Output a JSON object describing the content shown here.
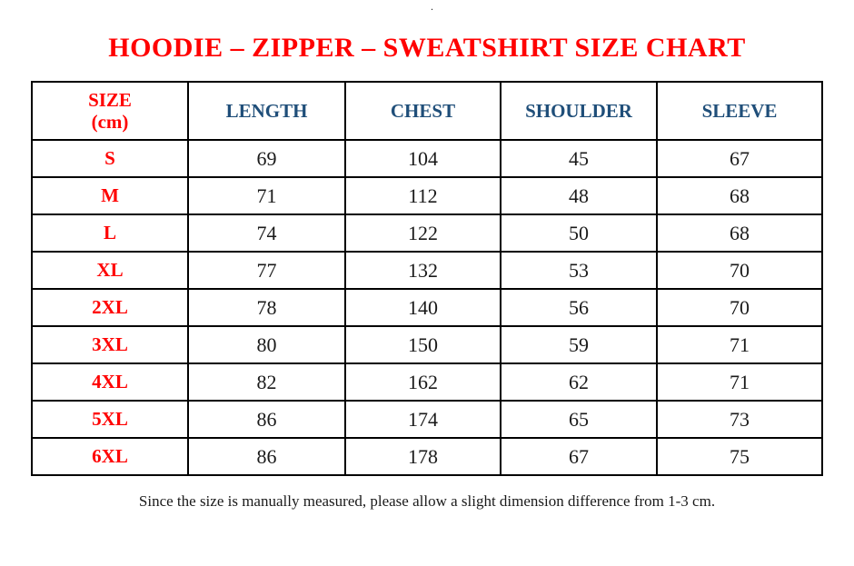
{
  "page": {
    "stray_mark": ".",
    "title": "HOODIE – ZIPPER – SWEATSHIRT SIZE CHART",
    "footer_note": "Since the size is manually measured, please allow a slight dimension difference from 1-3 cm."
  },
  "colors": {
    "title_red": "#FF0000",
    "size_label_red": "#FF0000",
    "header_blue": "#1F4E79",
    "body_text": "#1A1A1A",
    "border": "#000000",
    "background": "#FFFFFF"
  },
  "table": {
    "size_header": {
      "line1": "SIZE",
      "line2": "(cm)"
    },
    "measure_headers": [
      "LENGTH",
      "CHEST",
      "SHOULDER",
      "SLEEVE"
    ],
    "rows": [
      [
        "S",
        "69",
        "104",
        "45",
        "67"
      ],
      [
        "M",
        "71",
        "112",
        "48",
        "68"
      ],
      [
        "L",
        "74",
        "122",
        "50",
        "68"
      ],
      [
        "XL",
        "77",
        "132",
        "53",
        "70"
      ],
      [
        "2XL",
        "78",
        "140",
        "56",
        "70"
      ],
      [
        "3XL",
        "80",
        "150",
        "59",
        "71"
      ],
      [
        "4XL",
        "82",
        "162",
        "62",
        "71"
      ],
      [
        "5XL",
        "86",
        "174",
        "65",
        "73"
      ],
      [
        "6XL",
        "86",
        "178",
        "67",
        "75"
      ]
    ]
  }
}
